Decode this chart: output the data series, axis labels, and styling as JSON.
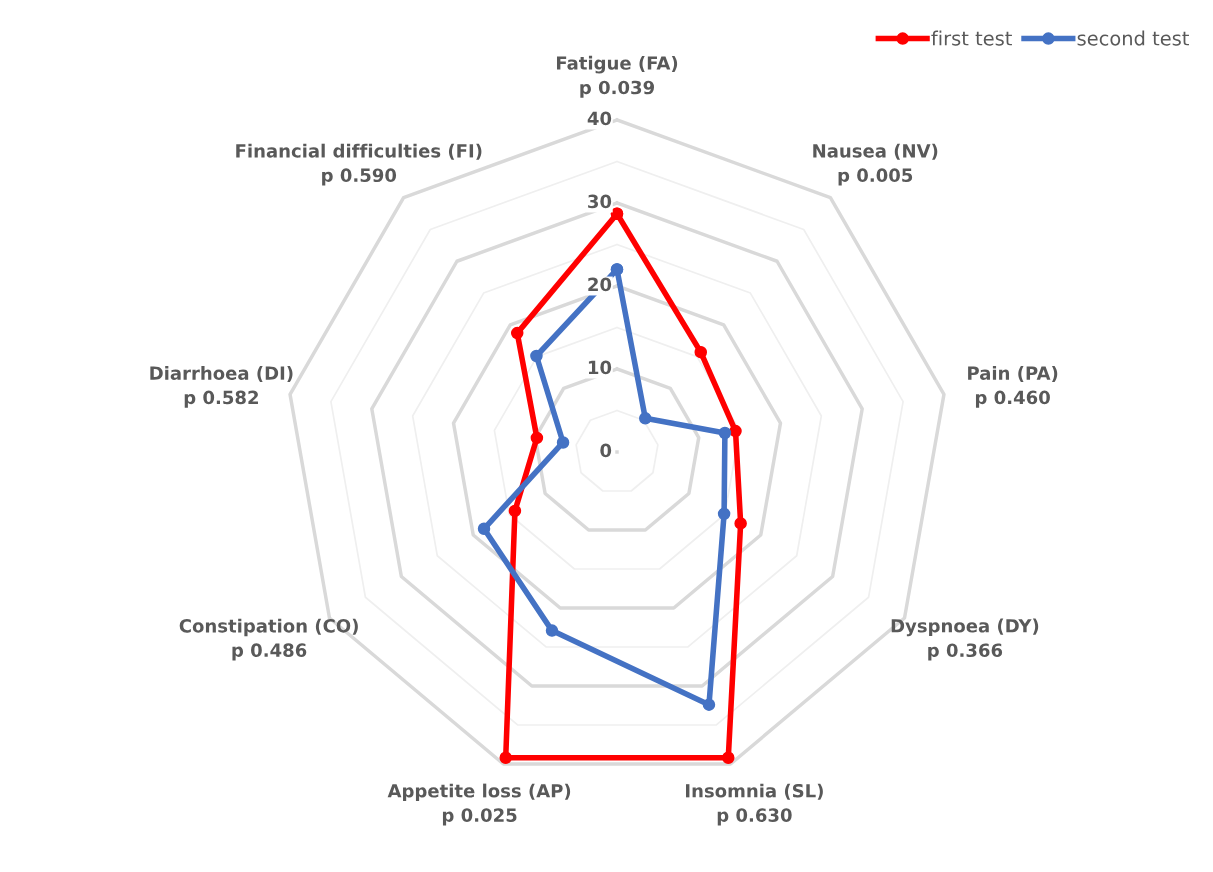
{
  "chart_data": {
    "type": "radar",
    "categories": [
      "Fatigue (FA)\np 0.039",
      "Nausea (NV)\np 0.005",
      "Pain (PA)\np 0.460",
      "Dyspnoea (DY)\np 0.366",
      "Insomnia (SL)\np 0.630",
      "Appetite loss (AP)\np 0.025",
      "Constipation (CO)\np 0.486",
      "Diarrhoea (DI)\np 0.582",
      "Financial difficulties (FI)\np 0.590"
    ],
    "series": [
      {
        "name": "first test",
        "color": "#ff0000",
        "values": [
          28.7,
          15.7,
          14.5,
          17.2,
          39.2,
          39.2,
          14.2,
          9.8,
          18.7
        ]
      },
      {
        "name": "second test",
        "color": "#4472c4",
        "values": [
          22.0,
          5.3,
          13.2,
          14.9,
          32.4,
          22.9,
          18.5,
          6.6,
          15.1
        ]
      }
    ],
    "ylim": [
      0,
      40
    ],
    "yticks": [
      0,
      10,
      20,
      30,
      40
    ],
    "grid": true,
    "legend": "top right",
    "marker": "circle"
  }
}
